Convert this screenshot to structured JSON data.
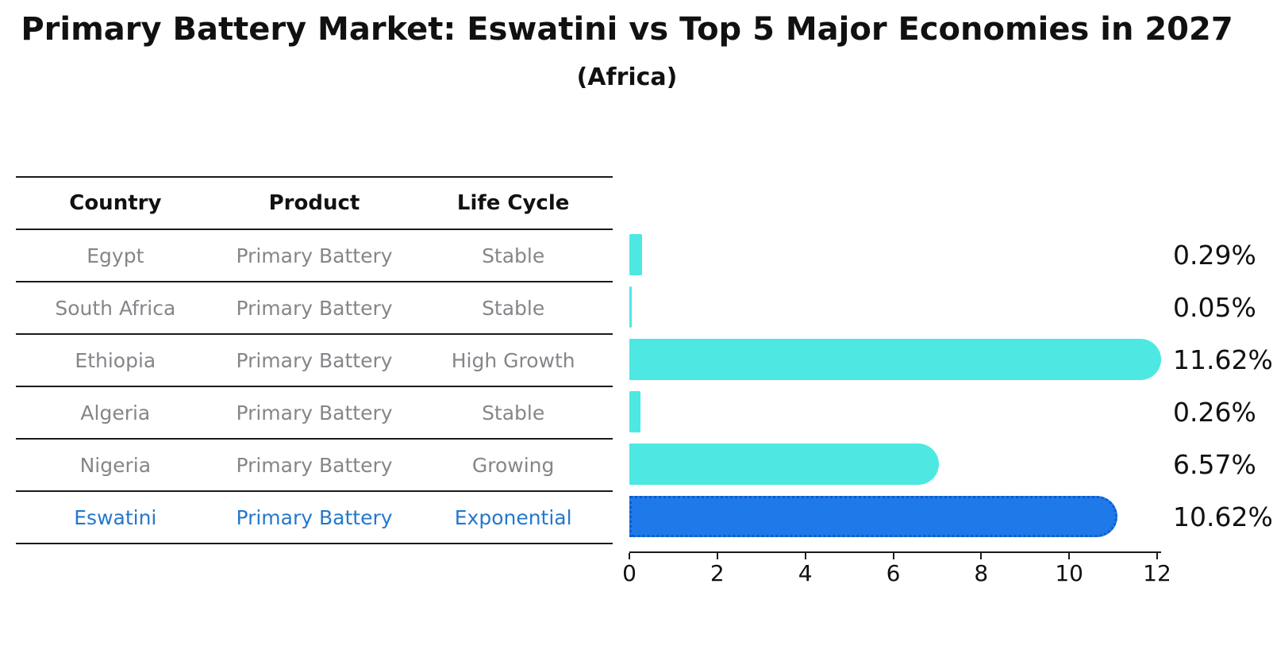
{
  "title": "Primary Battery Market: Eswatini vs Top 5 Major Economies in 2027",
  "subtitle": "(Africa)",
  "table": {
    "headers": [
      "Country",
      "Product",
      "Life Cycle"
    ],
    "rows": [
      {
        "country": "Egypt",
        "product": "Primary Battery",
        "life_cycle": "Stable",
        "value_label": "0.29%",
        "highlighted": false
      },
      {
        "country": "South Africa",
        "product": "Primary Battery",
        "life_cycle": "Stable",
        "value_label": "0.05%",
        "highlighted": false
      },
      {
        "country": "Ethiopia",
        "product": "Primary Battery",
        "life_cycle": "High Growth",
        "value_label": "11.62%",
        "highlighted": false
      },
      {
        "country": "Algeria",
        "product": "Primary Battery",
        "life_cycle": "Stable",
        "value_label": "0.26%",
        "highlighted": false
      },
      {
        "country": "Nigeria",
        "product": "Primary Battery",
        "life_cycle": "Growing",
        "value_label": "6.57%",
        "highlighted": false
      },
      {
        "country": "Eswatini",
        "product": "Primary Battery",
        "life_cycle": "Exponential",
        "value_label": "10.62%",
        "highlighted": true
      }
    ]
  },
  "chart_data": {
    "type": "bar",
    "orientation": "horizontal",
    "title": "Primary Battery Market: Eswatini vs Top 5 Major Economies in 2027",
    "subtitle": "(Africa)",
    "categories": [
      "Egypt",
      "South Africa",
      "Ethiopia",
      "Algeria",
      "Nigeria",
      "Eswatini"
    ],
    "values": [
      0.29,
      0.05,
      11.62,
      0.26,
      6.57,
      10.62
    ],
    "value_labels": [
      "0.29%",
      "0.05%",
      "11.62%",
      "0.26%",
      "6.57%",
      "10.62%"
    ],
    "xlabel": "",
    "ylabel": "",
    "xlim": [
      0,
      12
    ],
    "xticks": [
      0,
      2,
      4,
      6,
      8,
      10,
      12
    ],
    "grid": false,
    "legend": "none",
    "bar_color": "#4de8e2",
    "highlight_color": "#2079e8",
    "highlight_index": 5,
    "highlight_text_color": "#2478cc"
  }
}
